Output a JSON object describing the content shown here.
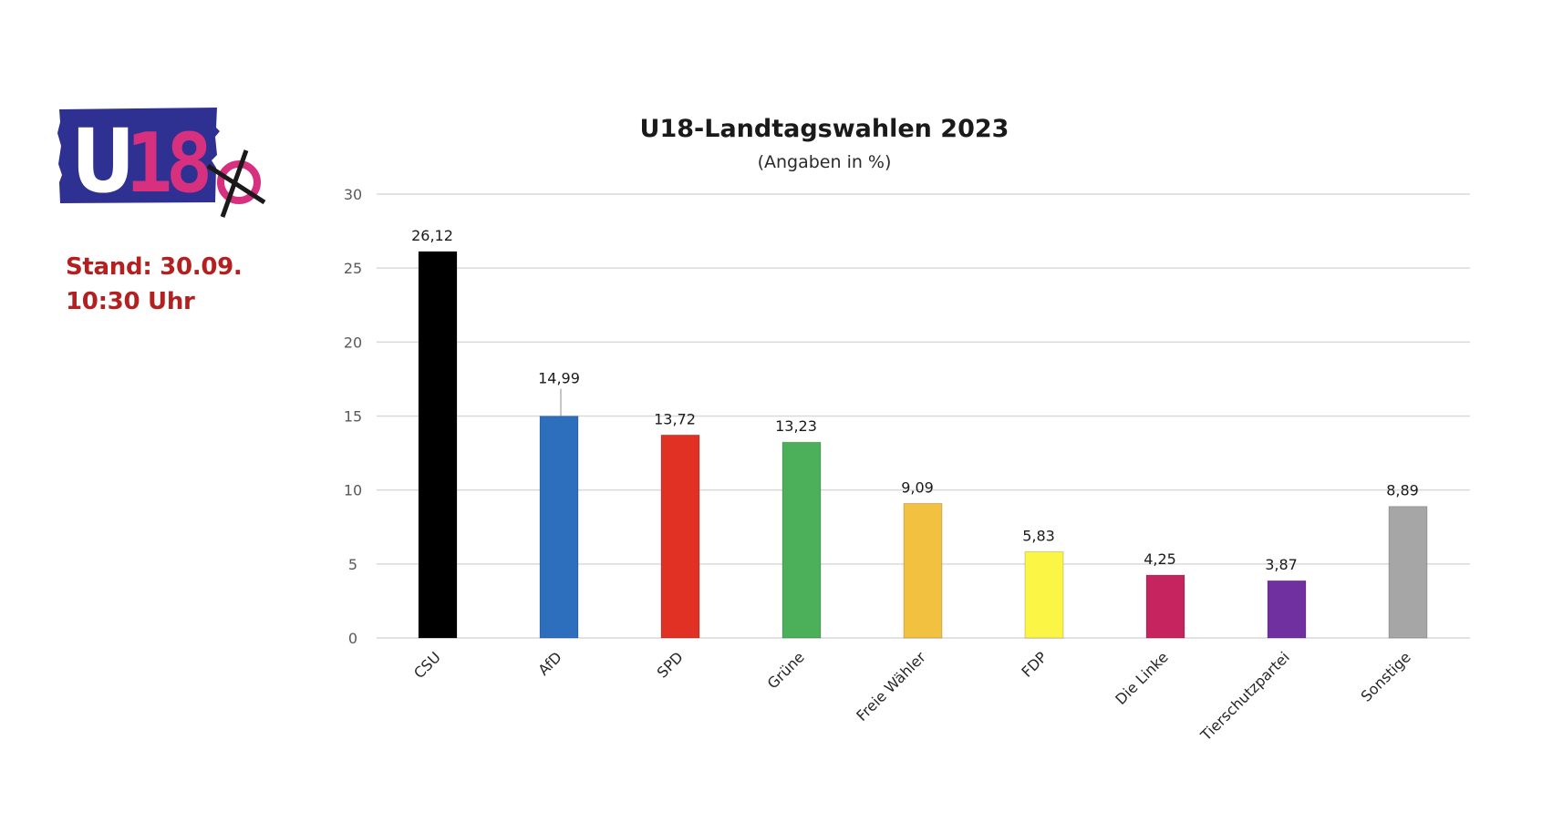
{
  "logo": {
    "text_u": "U",
    "text_18": "18",
    "colors": {
      "background": "#2e3192",
      "u": "#ffffff",
      "eighteen": "#d6307f",
      "circle": "#d6307f",
      "cross": "#1a1a1a"
    }
  },
  "status": {
    "line1": "Stand: 30.09.",
    "line2": "10:30 Uhr",
    "color": "#b3201f"
  },
  "chart_data": {
    "type": "bar",
    "title": "U18-Landtagswahlen 2023",
    "subtitle": "(Angaben in %)",
    "xlabel": "",
    "ylabel": "",
    "ylim": [
      0,
      30
    ],
    "yticks": [
      0,
      5,
      10,
      15,
      20,
      25,
      30
    ],
    "grid": true,
    "legend": "none",
    "categories": [
      "CSU",
      "AfD",
      "SPD",
      "Grüne",
      "Freie Wähler",
      "FDP",
      "Die Linke",
      "Tierschutzpartei",
      "Sonstige"
    ],
    "values": [
      26.12,
      14.99,
      13.72,
      13.23,
      9.09,
      5.83,
      4.25,
      3.87,
      8.89
    ],
    "data_labels": [
      "26,12",
      "14,99",
      "13,72",
      "13,23",
      "9,09",
      "5,83",
      "4,25",
      "3,87",
      "8,89"
    ],
    "colors": [
      "#000000",
      "#2e6fbd",
      "#e03124",
      "#4caf5a",
      "#f2c140",
      "#fbf646",
      "#c6245f",
      "#7030a0",
      "#a6a6a6"
    ],
    "leader_line_on": [
      "AfD"
    ]
  }
}
